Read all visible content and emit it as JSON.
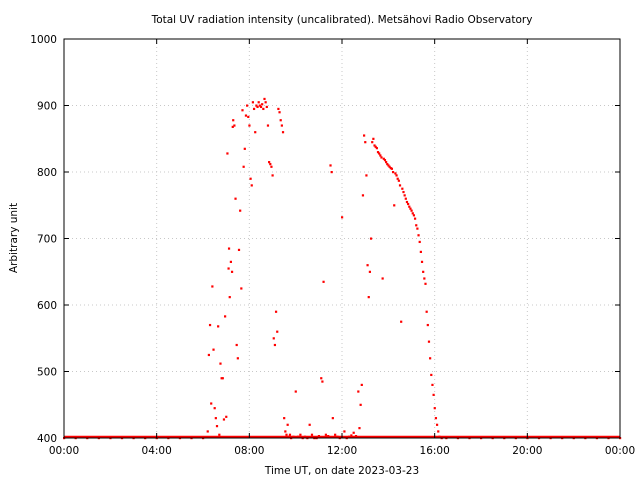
{
  "chart_data": {
    "type": "scatter",
    "title": "Total UV radiation intensity (uncalibrated). Metsähovi Radio Observatory",
    "xlabel": "Time UT, on date 2023-03-23",
    "ylabel": "Arbitrary unit",
    "xlim": [
      0,
      24
    ],
    "ylim": [
      400,
      1000
    ],
    "x_ticks": [
      0,
      4,
      8,
      12,
      16,
      20,
      24
    ],
    "x_tick_labels": [
      "00:00",
      "04:00",
      "08:00",
      "12:00",
      "16:00",
      "20:00",
      "00:00"
    ],
    "y_ticks": [
      400,
      500,
      600,
      700,
      800,
      900,
      1000
    ],
    "y_tick_labels": [
      "400",
      "500",
      "600",
      "700",
      "800",
      "900",
      "1000"
    ],
    "grid": true,
    "legend": "none",
    "marker_color": "#ff0000",
    "series": [
      {
        "points": [
          [
            0.0,
            400
          ],
          [
            0.5,
            400
          ],
          [
            1.0,
            400
          ],
          [
            1.5,
            400
          ],
          [
            2.0,
            400
          ],
          [
            2.5,
            400
          ],
          [
            3.0,
            400
          ],
          [
            3.5,
            400
          ],
          [
            4.0,
            400
          ],
          [
            4.5,
            400
          ],
          [
            5.0,
            400
          ],
          [
            5.5,
            400
          ],
          [
            6.0,
            400
          ],
          [
            6.2,
            410
          ],
          [
            6.25,
            525
          ],
          [
            6.3,
            570
          ],
          [
            6.35,
            452
          ],
          [
            6.4,
            628
          ],
          [
            6.45,
            533
          ],
          [
            6.5,
            445
          ],
          [
            6.55,
            430
          ],
          [
            6.6,
            418
          ],
          [
            6.65,
            568
          ],
          [
            6.7,
            405
          ],
          [
            6.75,
            512
          ],
          [
            6.8,
            490
          ],
          [
            6.85,
            490
          ],
          [
            6.9,
            428
          ],
          [
            6.95,
            583
          ],
          [
            7.0,
            432
          ],
          [
            7.05,
            828
          ],
          [
            7.1,
            655
          ],
          [
            7.12,
            685
          ],
          [
            7.15,
            612
          ],
          [
            7.2,
            665
          ],
          [
            7.25,
            650
          ],
          [
            7.28,
            868
          ],
          [
            7.3,
            878
          ],
          [
            7.35,
            870
          ],
          [
            7.4,
            760
          ],
          [
            7.45,
            540
          ],
          [
            7.5,
            520
          ],
          [
            7.55,
            683
          ],
          [
            7.6,
            742
          ],
          [
            7.65,
            625
          ],
          [
            7.7,
            893
          ],
          [
            7.75,
            808
          ],
          [
            7.8,
            835
          ],
          [
            7.85,
            885
          ],
          [
            7.9,
            900
          ],
          [
            7.95,
            883
          ],
          [
            8.0,
            870
          ],
          [
            8.05,
            790
          ],
          [
            8.1,
            780
          ],
          [
            8.15,
            905
          ],
          [
            8.2,
            895
          ],
          [
            8.25,
            860
          ],
          [
            8.3,
            900
          ],
          [
            8.35,
            898
          ],
          [
            8.4,
            905
          ],
          [
            8.45,
            900
          ],
          [
            8.5,
            898
          ],
          [
            8.55,
            902
          ],
          [
            8.6,
            895
          ],
          [
            8.65,
            910
          ],
          [
            8.7,
            905
          ],
          [
            8.75,
            898
          ],
          [
            8.8,
            870
          ],
          [
            8.85,
            815
          ],
          [
            8.9,
            812
          ],
          [
            8.95,
            808
          ],
          [
            9.0,
            795
          ],
          [
            9.05,
            550
          ],
          [
            9.1,
            540
          ],
          [
            9.15,
            590
          ],
          [
            9.2,
            560
          ],
          [
            9.25,
            895
          ],
          [
            9.3,
            890
          ],
          [
            9.35,
            878
          ],
          [
            9.4,
            870
          ],
          [
            9.45,
            860
          ],
          [
            9.5,
            430
          ],
          [
            9.55,
            410
          ],
          [
            9.6,
            405
          ],
          [
            9.65,
            420
          ],
          [
            9.7,
            402
          ],
          [
            9.75,
            405
          ],
          [
            9.8,
            400
          ],
          [
            9.9,
            402
          ],
          [
            10.0,
            470
          ],
          [
            10.1,
            402
          ],
          [
            10.2,
            405
          ],
          [
            10.3,
            400
          ],
          [
            10.4,
            402
          ],
          [
            10.5,
            400
          ],
          [
            10.6,
            420
          ],
          [
            10.7,
            405
          ],
          [
            10.8,
            400
          ],
          [
            10.9,
            400
          ],
          [
            11.0,
            403
          ],
          [
            11.1,
            490
          ],
          [
            11.15,
            485
          ],
          [
            11.2,
            635
          ],
          [
            11.3,
            405
          ],
          [
            11.4,
            403
          ],
          [
            11.5,
            810
          ],
          [
            11.55,
            800
          ],
          [
            11.6,
            430
          ],
          [
            11.7,
            405
          ],
          [
            11.8,
            402
          ],
          [
            11.9,
            400
          ],
          [
            12.0,
            732
          ],
          [
            12.1,
            410
          ],
          [
            12.2,
            400
          ],
          [
            12.3,
            402
          ],
          [
            12.4,
            404
          ],
          [
            12.5,
            408
          ],
          [
            12.6,
            403
          ],
          [
            12.7,
            470
          ],
          [
            12.75,
            415
          ],
          [
            12.8,
            450
          ],
          [
            12.85,
            480
          ],
          [
            12.9,
            765
          ],
          [
            12.95,
            855
          ],
          [
            13.0,
            845
          ],
          [
            13.05,
            795
          ],
          [
            13.1,
            660
          ],
          [
            13.15,
            612
          ],
          [
            13.2,
            650
          ],
          [
            13.25,
            700
          ],
          [
            13.3,
            845
          ],
          [
            13.35,
            850
          ],
          [
            13.4,
            840
          ],
          [
            13.45,
            838
          ],
          [
            13.5,
            836
          ],
          [
            13.55,
            830
          ],
          [
            13.6,
            828
          ],
          [
            13.65,
            825
          ],
          [
            13.7,
            822
          ],
          [
            13.75,
            640
          ],
          [
            13.8,
            820
          ],
          [
            13.85,
            818
          ],
          [
            13.9,
            815
          ],
          [
            13.95,
            812
          ],
          [
            14.0,
            810
          ],
          [
            14.05,
            808
          ],
          [
            14.1,
            806
          ],
          [
            14.15,
            805
          ],
          [
            14.2,
            800
          ],
          [
            14.25,
            750
          ],
          [
            14.3,
            798
          ],
          [
            14.35,
            795
          ],
          [
            14.4,
            790
          ],
          [
            14.45,
            787
          ],
          [
            14.5,
            780
          ],
          [
            14.55,
            575
          ],
          [
            14.6,
            775
          ],
          [
            14.65,
            770
          ],
          [
            14.7,
            765
          ],
          [
            14.75,
            760
          ],
          [
            14.8,
            755
          ],
          [
            14.85,
            752
          ],
          [
            14.9,
            748
          ],
          [
            14.95,
            745
          ],
          [
            15.0,
            742
          ],
          [
            15.05,
            738
          ],
          [
            15.1,
            735
          ],
          [
            15.15,
            730
          ],
          [
            15.2,
            720
          ],
          [
            15.25,
            715
          ],
          [
            15.3,
            705
          ],
          [
            15.35,
            695
          ],
          [
            15.4,
            680
          ],
          [
            15.45,
            665
          ],
          [
            15.5,
            650
          ],
          [
            15.55,
            640
          ],
          [
            15.6,
            632
          ],
          [
            15.65,
            590
          ],
          [
            15.7,
            570
          ],
          [
            15.75,
            545
          ],
          [
            15.8,
            520
          ],
          [
            15.85,
            495
          ],
          [
            15.9,
            480
          ],
          [
            15.95,
            465
          ],
          [
            16.0,
            445
          ],
          [
            16.05,
            430
          ],
          [
            16.1,
            420
          ],
          [
            16.15,
            410
          ],
          [
            16.2,
            402
          ],
          [
            16.3,
            400
          ],
          [
            16.5,
            400
          ],
          [
            17.0,
            400
          ],
          [
            17.5,
            400
          ],
          [
            18.0,
            400
          ],
          [
            18.5,
            400
          ],
          [
            19.0,
            400
          ],
          [
            19.5,
            400
          ],
          [
            20.0,
            400
          ],
          [
            20.5,
            400
          ],
          [
            21.0,
            400
          ],
          [
            21.5,
            400
          ],
          [
            22.0,
            400
          ],
          [
            22.5,
            400
          ],
          [
            23.0,
            400
          ],
          [
            23.5,
            400
          ],
          [
            24.0,
            400
          ]
        ]
      }
    ]
  }
}
